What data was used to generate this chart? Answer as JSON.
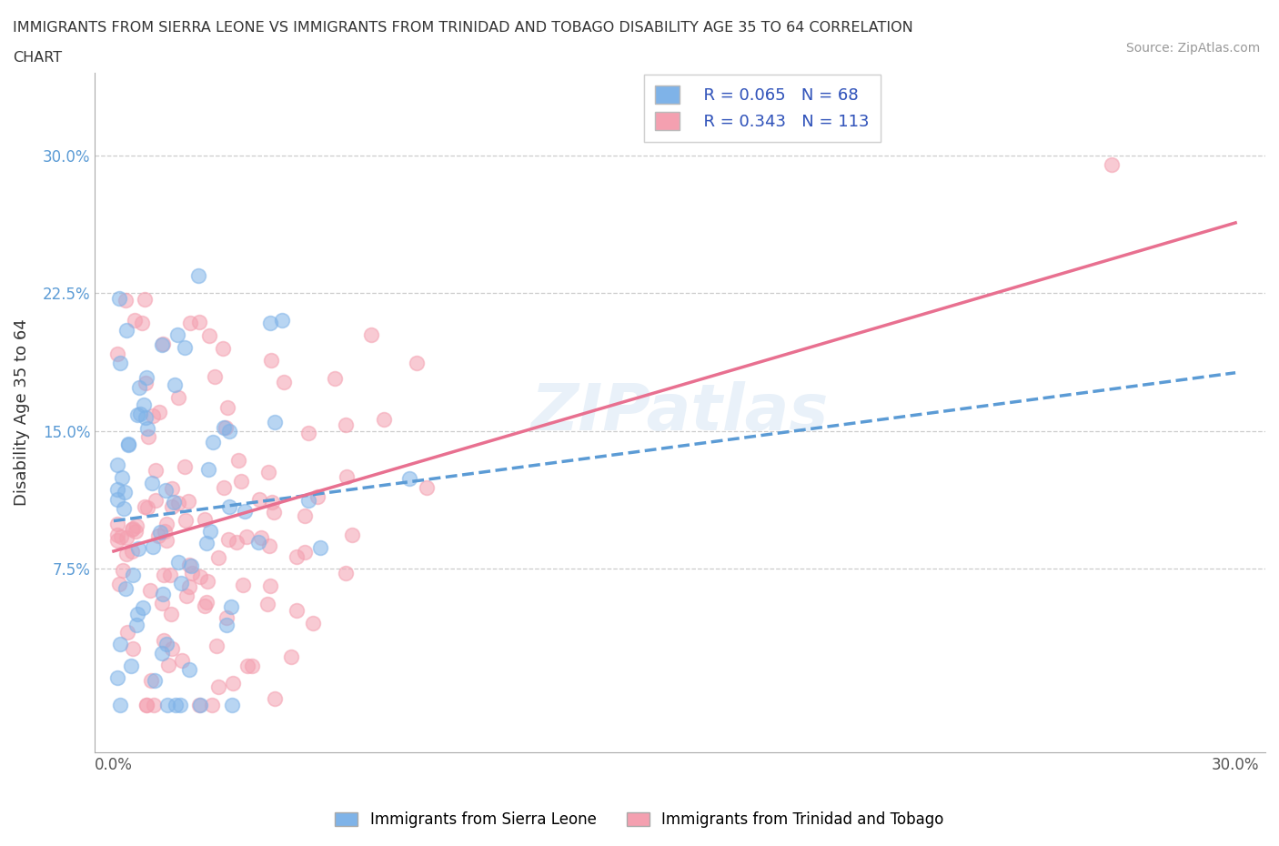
{
  "title_line1": "IMMIGRANTS FROM SIERRA LEONE VS IMMIGRANTS FROM TRINIDAD AND TOBAGO DISABILITY AGE 35 TO 64 CORRELATION",
  "title_line2": "CHART",
  "source": "Source: ZipAtlas.com",
  "ylabel": "Disability Age 35 to 64",
  "color_blue": "#7FB3E8",
  "color_pink": "#F4A0B0",
  "trend_blue": "#5B9BD5",
  "trend_pink": "#E87090",
  "legend_R1": "R = 0.065",
  "legend_N1": "N = 68",
  "legend_R2": "R = 0.343",
  "legend_N2": "N = 113",
  "legend_label1": "Immigrants from Sierra Leone",
  "legend_label2": "Immigrants from Trinidad and Tobago",
  "watermark": "ZIPatlas",
  "ytick_color": "#5B9BD5"
}
